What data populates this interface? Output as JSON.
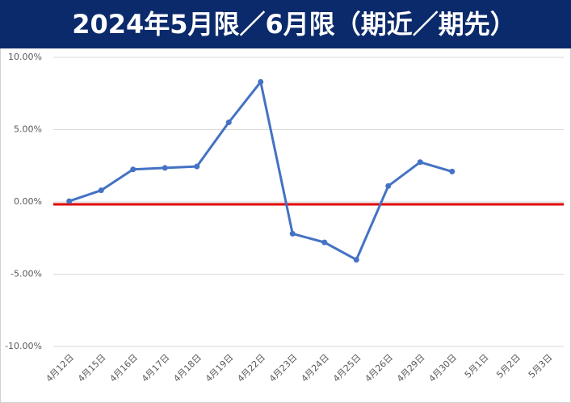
{
  "chart_data": {
    "type": "line",
    "title": "2024年5月限／6月限（期近／期先）",
    "categories": [
      "4月12日",
      "4月15日",
      "4月16日",
      "4月17日",
      "4月18日",
      "4月19日",
      "4月22日",
      "4月23日",
      "4月24日",
      "4月25日",
      "4月26日",
      "4月29日",
      "4月30日",
      "5月1日",
      "5月2日",
      "5月3日"
    ],
    "series": [
      {
        "color": "#4472c4",
        "values": [
          0.05,
          0.8,
          2.25,
          2.35,
          2.45,
          5.5,
          8.3,
          -2.2,
          -2.8,
          -4.0,
          1.1,
          2.75,
          2.1,
          null,
          null,
          null
        ]
      }
    ],
    "ylim": [
      -10,
      10
    ],
    "yticks": [
      {
        "value": -10,
        "label": "-10.00%"
      },
      {
        "value": -5,
        "label": "-5.00%"
      },
      {
        "value": 0,
        "label": "0.00%"
      },
      {
        "value": 5,
        "label": "5.00%"
      },
      {
        "value": 10,
        "label": "10.00%"
      }
    ],
    "grid": true,
    "reference_line": {
      "value": 0,
      "color": "#e00000"
    }
  }
}
